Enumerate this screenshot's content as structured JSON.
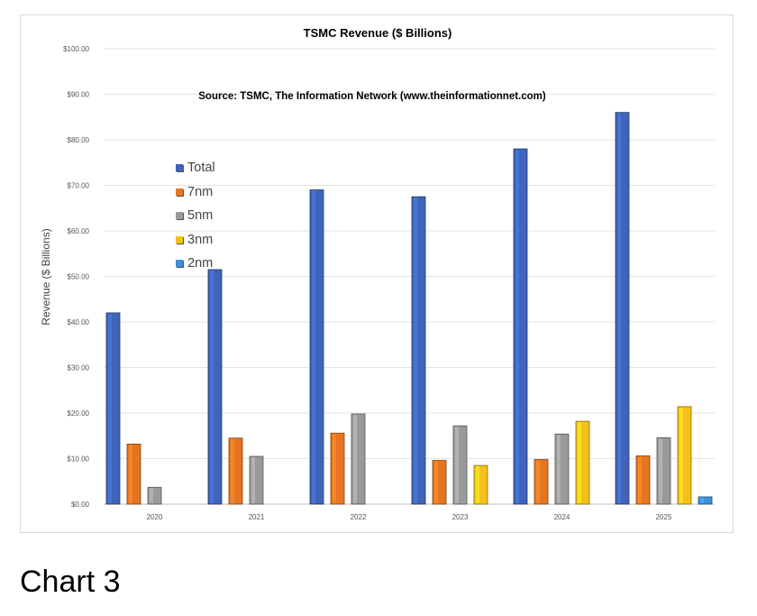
{
  "caption": "Chart 3",
  "chart_data": {
    "type": "bar",
    "title": "TSMC Revenue ($ Billions)",
    "subtitle": "Source: TSMC, The Information Network (www.theinformationnet.com)",
    "xlabel": "",
    "ylabel": "Revenue ($ Billions)",
    "ylim": [
      0,
      100
    ],
    "yticks": [
      "$0.00",
      "$10.00",
      "$20.00",
      "$30.00",
      "$40.00",
      "$50.00",
      "$60.00",
      "$70.00",
      "$80.00",
      "$90.00",
      "$100.00"
    ],
    "categories": [
      "2020",
      "2021",
      "2022",
      "2023",
      "2024",
      "2025"
    ],
    "grid": true,
    "legend_position": "upper-left",
    "series": [
      {
        "name": "Total",
        "color": "#3f64b9",
        "values": [
          42.0,
          51.5,
          69.0,
          67.5,
          78.0,
          86.0
        ]
      },
      {
        "name": "7nm",
        "color": "#e67521",
        "values": [
          13.2,
          14.5,
          15.6,
          9.6,
          9.8,
          10.6
        ]
      },
      {
        "name": "5nm",
        "color": "#9a9a9a",
        "values": [
          3.7,
          10.5,
          19.8,
          17.2,
          15.4,
          14.6
        ]
      },
      {
        "name": "3nm",
        "color": "#f2c11c",
        "values": [
          null,
          null,
          null,
          8.5,
          18.2,
          21.4
        ]
      },
      {
        "name": "2nm",
        "color": "#3d8fd6",
        "values": [
          null,
          null,
          null,
          null,
          null,
          1.6
        ]
      }
    ]
  }
}
